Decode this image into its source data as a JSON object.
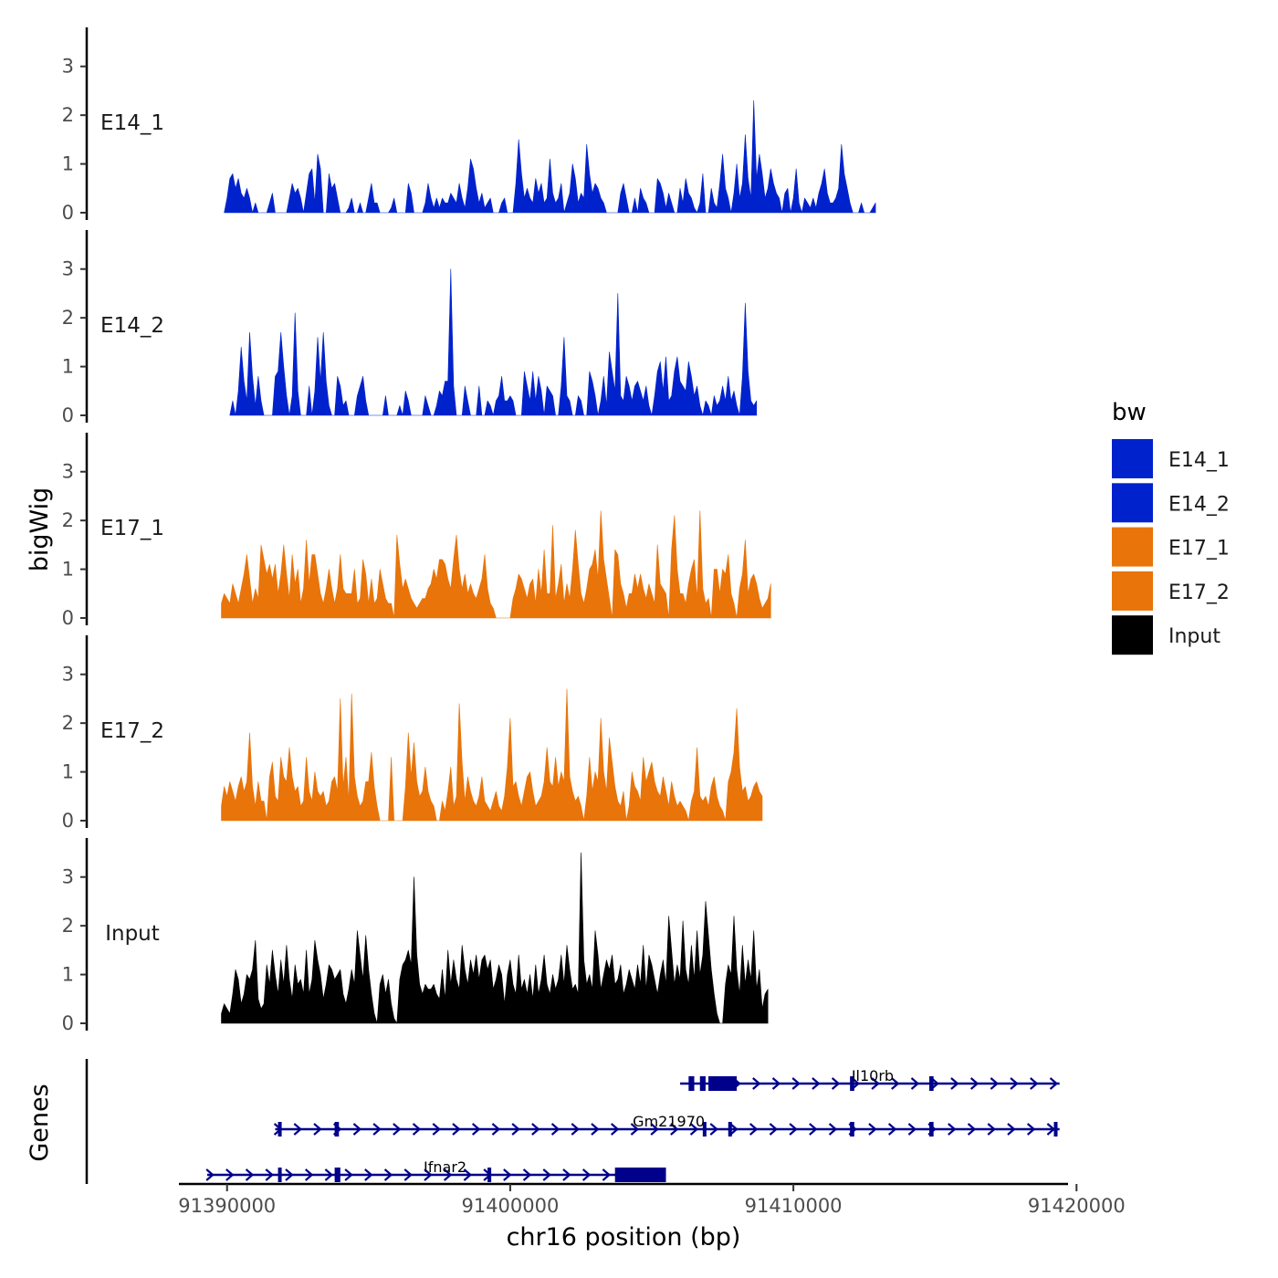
{
  "chart_data": {
    "type": "area",
    "title": "",
    "xlabel": "chr16 position (bp)",
    "ylabel": "bigWig",
    "genes_axis_label": "Genes",
    "xlim": [
      91388300,
      91419700
    ],
    "ylim": [
      0,
      3.8
    ],
    "x_ticks": [
      91390000,
      91400000,
      91410000,
      91420000
    ],
    "x_tick_labels": [
      "91390000",
      "91400000",
      "91410000",
      "91420000"
    ],
    "y_ticks": [
      0,
      1,
      2,
      3
    ],
    "y_tick_labels": [
      "0",
      "1",
      "2",
      "3"
    ],
    "legend": {
      "title": "bw",
      "position": "right",
      "entries": [
        {
          "label": "E14_1",
          "color": "#0022CC"
        },
        {
          "label": "E14_2",
          "color": "#0022CC"
        },
        {
          "label": "E17_1",
          "color": "#E8740A"
        },
        {
          "label": "E17_2",
          "color": "#E8740A"
        },
        {
          "label": "Input",
          "color": "#000000"
        }
      ]
    },
    "series": [
      {
        "name": "E14_1",
        "color": "#0022CC",
        "start": 91389900,
        "step": 100,
        "values": [
          0,
          0.3,
          0.7,
          0.8,
          0.5,
          0.7,
          0.4,
          0.3,
          0.5,
          0.3,
          0,
          0.2,
          0,
          0,
          0,
          0,
          0.2,
          0.4,
          0,
          0,
          0,
          0,
          0,
          0.3,
          0.6,
          0.4,
          0.5,
          0.3,
          0,
          0.4,
          0.8,
          0.9,
          0.2,
          1.2,
          0.9,
          0,
          0,
          0.8,
          0.5,
          0.6,
          0.3,
          0,
          0,
          0,
          0.1,
          0.3,
          0,
          0,
          0.2,
          0,
          0,
          0.3,
          0.6,
          0.2,
          0.2,
          0,
          0,
          0,
          0,
          0.1,
          0.3,
          0,
          0,
          0,
          0,
          0.6,
          0.4,
          0,
          0,
          0,
          0,
          0.2,
          0.6,
          0.3,
          0.1,
          0.3,
          0.1,
          0.3,
          0.2,
          0.2,
          0.4,
          0.3,
          0.2,
          0.6,
          0.3,
          0.1,
          0.5,
          1.1,
          0.9,
          0.5,
          0.2,
          0.4,
          0.1,
          0.2,
          0.3,
          0,
          0,
          0,
          0.2,
          0.3,
          0,
          0,
          0,
          0.6,
          1.5,
          0.8,
          0.3,
          0.5,
          0.3,
          0.2,
          0.7,
          0.4,
          0.6,
          0.2,
          0.3,
          1.1,
          0.4,
          0.2,
          0.3,
          0.6,
          0,
          0.2,
          0.4,
          1.0,
          0.7,
          0.2,
          0.4,
          0.3,
          1.4,
          0.8,
          0.4,
          0.6,
          0.5,
          0.3,
          0.2,
          0,
          0,
          0,
          0,
          0,
          0.4,
          0.6,
          0.3,
          0,
          0,
          0.3,
          0,
          0.5,
          0.3,
          0.2,
          0,
          0,
          0,
          0.7,
          0.6,
          0.4,
          0.1,
          0.4,
          0.2,
          0,
          0,
          0.5,
          0.2,
          0.7,
          0.4,
          0.3,
          0.1,
          0,
          0.2,
          0.8,
          0,
          0,
          0.5,
          0.2,
          0.1,
          0.6,
          1.2,
          0.5,
          0.3,
          0,
          0.4,
          1.0,
          0.3,
          0.6,
          1.6,
          0.7,
          0.3,
          2.3,
          0.7,
          1.2,
          0.8,
          0.3,
          0.5,
          0.9,
          0.6,
          0.4,
          0.3,
          0,
          0.4,
          0.5,
          0,
          0.3,
          0.9,
          0.2,
          0,
          0.3,
          0.2,
          0.1,
          0.3,
          0.1,
          0.4,
          0.6,
          0.9,
          0.4,
          0.2,
          0.2,
          0.3,
          0.5,
          1.4,
          0.8,
          0.5,
          0.2,
          0,
          0,
          0,
          0.2,
          0,
          0,
          0,
          0.1,
          0.2
        ]
      },
      {
        "name": "E14_2",
        "color": "#0022CC",
        "start": 91390100,
        "step": 100,
        "values": [
          0,
          0.3,
          0,
          0.5,
          1.4,
          0.7,
          0.3,
          1.7,
          0.8,
          0.2,
          0.8,
          0.3,
          0,
          0,
          0,
          0,
          0.8,
          0.9,
          1.7,
          1.0,
          0.4,
          0,
          0.4,
          2.1,
          0.5,
          0,
          0,
          0,
          0.6,
          0,
          0.5,
          1.6,
          0.7,
          1.7,
          0.7,
          0.2,
          0,
          0,
          0.8,
          0.6,
          0.2,
          0.3,
          0,
          0,
          0,
          0.4,
          0.6,
          0.8,
          0.3,
          0,
          0,
          0,
          0,
          0,
          0,
          0.4,
          0,
          0,
          0,
          0,
          0.2,
          0,
          0.5,
          0.3,
          0,
          0,
          0,
          0,
          0,
          0.4,
          0.2,
          0,
          0,
          0.2,
          0.5,
          0.4,
          0.7,
          0.7,
          3.0,
          0.6,
          0,
          0,
          0,
          0.6,
          0.3,
          0,
          0,
          0,
          0.6,
          0,
          0,
          0.3,
          0.2,
          0,
          0.3,
          0.4,
          0.8,
          0.3,
          0.3,
          0.4,
          0.3,
          0,
          0,
          0,
          0.9,
          0.6,
          0.3,
          0.9,
          0.3,
          0.8,
          0.5,
          0,
          0.6,
          0.5,
          0.4,
          0,
          0,
          0.6,
          1.6,
          0.4,
          0.3,
          0,
          0,
          0.4,
          0.3,
          0,
          0,
          0.9,
          0.7,
          0.4,
          0,
          0.3,
          0.8,
          0.2,
          1.3,
          0.9,
          0.5,
          2.5,
          0.4,
          0.3,
          0.8,
          0.6,
          0.3,
          0.6,
          0.7,
          0.5,
          0.3,
          0.6,
          0.2,
          0,
          0.4,
          0.9,
          1.1,
          0.5,
          1.2,
          0.3,
          0.4,
          0.9,
          1.2,
          0.7,
          0.6,
          0.5,
          1.1,
          0.8,
          0.4,
          0.6,
          0.2,
          0,
          0.3,
          0.2,
          0,
          0.4,
          0.2,
          0.3,
          0.6,
          0.3,
          0.8,
          0.3,
          0.5,
          0.2,
          0,
          0.8,
          2.3,
          0.9,
          0.3,
          0.2,
          0.3
        ]
      },
      {
        "name": "E17_1",
        "color": "#E8740A",
        "start": 91389800,
        "step": 100,
        "values": [
          0.3,
          0.5,
          0.4,
          0.3,
          0.7,
          0.5,
          0.3,
          0.6,
          0.9,
          1.3,
          0.8,
          0.3,
          0.6,
          0.4,
          1.5,
          1.2,
          0.9,
          1.1,
          0.8,
          1.1,
          0.5,
          0.9,
          1.5,
          0.9,
          0.4,
          1.3,
          0.7,
          1.0,
          0.3,
          0.6,
          1.6,
          0.7,
          1.3,
          1.3,
          0.9,
          0.5,
          0.3,
          0.6,
          1.0,
          0.6,
          0.3,
          0.6,
          1.3,
          0.6,
          0.5,
          0.5,
          0.5,
          1.0,
          0.3,
          0.4,
          1.2,
          0.9,
          0.3,
          0.8,
          0.3,
          0.4,
          1.0,
          0.7,
          0.4,
          0.3,
          0.3,
          0,
          1.7,
          1.1,
          0.6,
          0.8,
          0.6,
          0.4,
          0.3,
          0.2,
          0.3,
          0.4,
          0.4,
          0.6,
          0.7,
          1.0,
          0.8,
          1.2,
          1.2,
          1.1,
          0.8,
          0.6,
          1.2,
          1.7,
          1.0,
          0.6,
          0.9,
          0.5,
          0.7,
          0.5,
          0.4,
          0.6,
          0.8,
          1.3,
          0.6,
          0.3,
          0.2,
          0,
          0,
          0,
          0,
          0,
          0,
          0.4,
          0.6,
          0.9,
          0.8,
          0.6,
          0.4,
          0.7,
          0.8,
          0.3,
          1.0,
          0.5,
          1.4,
          0.5,
          0.5,
          1.9,
          0.4,
          0.7,
          1.1,
          0.3,
          0.7,
          0.4,
          1.0,
          1.8,
          1.1,
          0.5,
          0.3,
          0.6,
          1.0,
          1.1,
          1.4,
          0.8,
          2.2,
          1.2,
          0.8,
          0.4,
          0,
          1.4,
          1.3,
          0.7,
          0.5,
          0.2,
          0.5,
          0.5,
          0.9,
          0.6,
          0.9,
          0.6,
          0.4,
          0.7,
          0.5,
          0.3,
          1.5,
          0.7,
          0.6,
          0.5,
          0,
          1.4,
          2.1,
          1.0,
          0.5,
          0.5,
          0.3,
          0.7,
          1.0,
          1.2,
          0.4,
          2.2,
          0.6,
          0.3,
          0.4,
          0,
          1.0,
          1.0,
          0.5,
          1.0,
          0.9,
          1.3,
          0.5,
          0.3,
          0,
          0.6,
          0.9,
          1.6,
          0.5,
          0.8,
          0.9,
          0.7,
          0.4,
          0.2,
          0.3,
          0.4,
          0.7
        ]
      },
      {
        "name": "E17_2",
        "color": "#E8740A",
        "start": 91389800,
        "step": 100,
        "values": [
          0.3,
          0.7,
          0.5,
          0.8,
          0.6,
          0.4,
          0.7,
          0.9,
          0.6,
          0.8,
          1.8,
          0.7,
          0.3,
          0.8,
          0.4,
          0.4,
          0,
          0.9,
          1.2,
          0.5,
          0.4,
          1.3,
          0.9,
          0.8,
          1.5,
          0.9,
          0.6,
          0.7,
          0.3,
          0.4,
          1.3,
          0.6,
          0.4,
          1.0,
          0.6,
          0.5,
          0.6,
          0.3,
          0.4,
          0.8,
          0.9,
          0.6,
          2.5,
          0.7,
          1.3,
          0.4,
          2.6,
          0.9,
          0.5,
          0.3,
          0.4,
          0.8,
          0.8,
          1.4,
          0.7,
          0.3,
          0,
          0,
          0,
          0,
          1.3,
          0,
          0,
          0,
          0,
          0.7,
          1.8,
          0.9,
          1.6,
          0.8,
          0.5,
          0.6,
          1.1,
          0.6,
          0.4,
          0.3,
          0,
          0,
          0.4,
          0.2,
          0.6,
          1.1,
          0.3,
          0.5,
          2.4,
          1.2,
          0.4,
          0.9,
          0.6,
          0.4,
          0.3,
          0.5,
          0.9,
          0.4,
          0.3,
          0.2,
          0.4,
          0.6,
          0.3,
          0.2,
          0.5,
          1.1,
          2.1,
          0.7,
          0.8,
          0.5,
          0.3,
          0.6,
          0.9,
          1.0,
          0.6,
          0.3,
          0.4,
          0.5,
          0.8,
          1.5,
          0.8,
          0.7,
          1.3,
          0.7,
          1.0,
          0.8,
          2.7,
          0.9,
          0.6,
          0.4,
          0.5,
          0.3,
          0,
          0.5,
          1.3,
          0.6,
          1.0,
          0.8,
          2.1,
          1.0,
          0.6,
          1.7,
          1.2,
          0.7,
          0.4,
          0.3,
          0.6,
          0,
          0.3,
          1.0,
          0.7,
          0.6,
          0.4,
          1.3,
          0.8,
          1.0,
          1.2,
          0.8,
          0.6,
          0.5,
          0.9,
          0.6,
          0.3,
          0.8,
          0.5,
          0.3,
          0.4,
          0.3,
          0.2,
          0,
          0.4,
          0.6,
          1.5,
          0.5,
          0.4,
          0.5,
          0.3,
          0.7,
          0.9,
          0.5,
          0.3,
          0.2,
          0,
          0.8,
          1.0,
          1.4,
          2.3,
          1.1,
          0.6,
          0.7,
          0.4,
          0.5,
          0.7,
          0.8,
          0.6,
          0.5
        ]
      },
      {
        "name": "Input",
        "color": "#000000",
        "start": 91389800,
        "step": 100,
        "values": [
          0.2,
          0.4,
          0.3,
          0.2,
          0.6,
          1.1,
          0.9,
          0.4,
          0.6,
          1.0,
          0.9,
          1.1,
          1.7,
          0.5,
          0.3,
          0.4,
          1.2,
          0.8,
          1.5,
          1.0,
          0.6,
          1.3,
          0.8,
          1.6,
          0.9,
          0.5,
          1.2,
          0.8,
          0.9,
          0.6,
          1.5,
          0.6,
          0.9,
          1.7,
          1.3,
          1.0,
          0.5,
          0.8,
          1.2,
          1.1,
          0.9,
          1.0,
          1.1,
          0.6,
          0.4,
          0.7,
          1.1,
          0.8,
          1.9,
          1.4,
          0.9,
          1.8,
          1.1,
          0.6,
          0.2,
          0,
          0.8,
          1.0,
          0.6,
          0.9,
          0.4,
          0.1,
          0,
          0.9,
          1.2,
          1.3,
          1.5,
          1.2,
          3.0,
          1.4,
          0.8,
          0.6,
          0.8,
          0.7,
          0.7,
          0.8,
          0.6,
          0.5,
          1.1,
          0.5,
          1.5,
          0.8,
          1.3,
          0.9,
          0.7,
          1.6,
          1.1,
          0.8,
          1.3,
          1.0,
          1.4,
          0.9,
          1.3,
          1.4,
          1.1,
          1.3,
          0.7,
          0.9,
          1.2,
          1.0,
          0.4,
          1.0,
          1.3,
          0.8,
          0.6,
          1.4,
          0.7,
          0.9,
          0.6,
          1.0,
          0.5,
          1.2,
          0.6,
          0.9,
          1.4,
          0.8,
          0.6,
          1.0,
          0.7,
          0.9,
          1.4,
          0.8,
          1.6,
          1.1,
          0.7,
          0.8,
          0.6,
          3.5,
          1.3,
          0.8,
          1.0,
          0.7,
          1.9,
          1.4,
          0.7,
          1.0,
          1.3,
          1.1,
          1.4,
          0.8,
          0.9,
          1.2,
          0.6,
          0.8,
          1.1,
          0.9,
          0.7,
          1.2,
          0.8,
          1.6,
          0.7,
          1.4,
          1.2,
          0.9,
          0.6,
          1.0,
          1.3,
          0.8,
          2.2,
          1.5,
          0.8,
          1.2,
          0.9,
          2.1,
          1.1,
          0.8,
          1.6,
          0.9,
          1.9,
          1.0,
          1.4,
          2.5,
          1.8,
          1.1,
          0.6,
          0.2,
          0,
          0,
          0.8,
          1.2,
          1.0,
          2.2,
          1.1,
          0.6,
          1.6,
          0.8,
          1.3,
          0.9,
          1.9,
          0.7,
          1.1,
          0.3,
          0.6,
          0.7
        ]
      }
    ],
    "genes": [
      {
        "name": "Il10rb",
        "row": 0,
        "line": [
          91406000,
          91419400
        ],
        "arrows": [
          91408000,
          91419400,
          700
        ],
        "exons": [
          [
            91406300,
            91406500
          ],
          [
            91406700,
            91406900
          ],
          [
            91407000,
            91408000
          ],
          [
            91412000,
            91412150
          ],
          [
            91414800,
            91414950
          ]
        ],
        "label_x": 91412800
      },
      {
        "name": "Gm21970",
        "row": 1,
        "line": [
          91391700,
          91419400
        ],
        "arrows": [
          91391800,
          91419400,
          700
        ],
        "exons": [
          [
            91391800,
            91391900
          ],
          [
            91393800,
            91393950
          ],
          [
            91406800,
            91406900
          ],
          [
            91407700,
            91407800
          ],
          [
            91412000,
            91412150
          ],
          [
            91414800,
            91414950
          ],
          [
            91419200,
            91419300
          ]
        ],
        "label_x": 91405600
      },
      {
        "name": "Ifnar2",
        "row": 2,
        "line": [
          91389300,
          91405500
        ],
        "arrows": [
          91389400,
          91405300,
          700
        ],
        "exons": [
          [
            91391800,
            91391900
          ],
          [
            91393800,
            91394000
          ],
          [
            91399200,
            91399300
          ],
          [
            91403700,
            91405500
          ]
        ],
        "label_x": 91397700
      }
    ],
    "gene_color": "#00008B"
  }
}
